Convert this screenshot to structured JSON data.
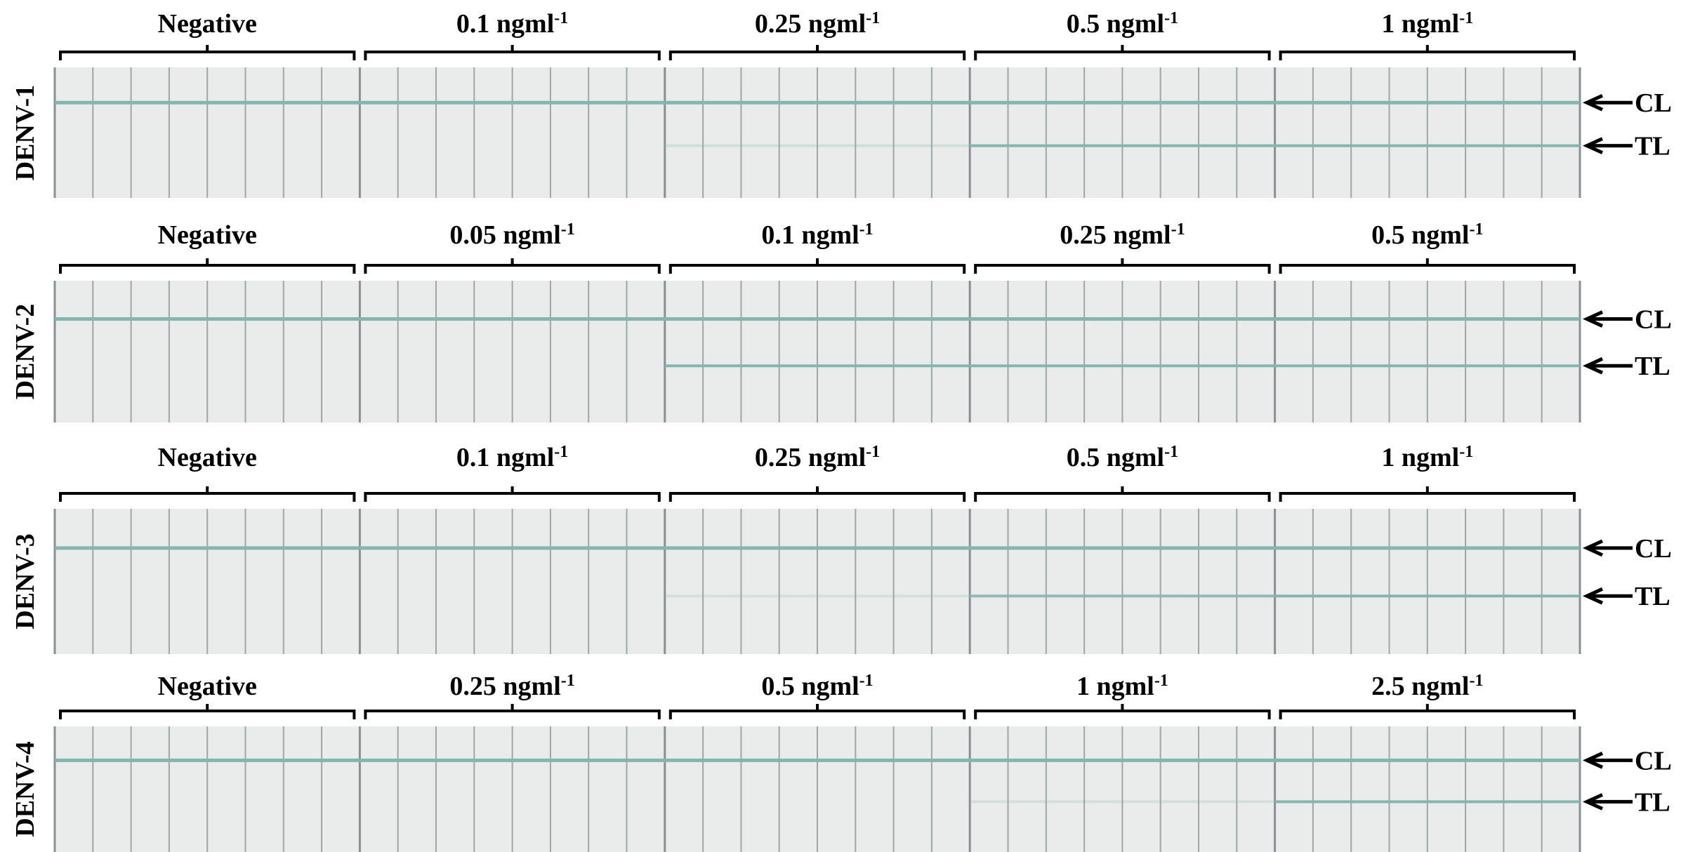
{
  "panels": [
    {
      "label": "DENV-1",
      "cl": "CL",
      "tl": "TL",
      "groups": [
        {
          "label": "Negative"
        },
        {
          "label": "0.1 ngml",
          "sup": "-1"
        },
        {
          "label": "0.25 ngml",
          "sup": "-1"
        },
        {
          "label": "0.5 ngml",
          "sup": "-1"
        },
        {
          "label": "1 ngml",
          "sup": "-1"
        }
      ]
    },
    {
      "label": "DENV-2",
      "cl": "CL",
      "tl": "TL",
      "groups": [
        {
          "label": "Negative"
        },
        {
          "label": "0.05 ngml",
          "sup": "-1"
        },
        {
          "label": "0.1 ngml",
          "sup": "-1"
        },
        {
          "label": "0.25 ngml",
          "sup": "-1"
        },
        {
          "label": "0.5 ngml",
          "sup": "-1"
        }
      ]
    },
    {
      "label": "DENV-3",
      "cl": "CL",
      "tl": "TL",
      "groups": [
        {
          "label": "Negative"
        },
        {
          "label": "0.1 ngml",
          "sup": "-1"
        },
        {
          "label": "0.25 ngml",
          "sup": "-1"
        },
        {
          "label": "0.5 ngml",
          "sup": "-1"
        },
        {
          "label": "1 ngml",
          "sup": "-1"
        }
      ]
    },
    {
      "label": "DENV-4",
      "cl": "CL",
      "tl": "TL",
      "groups": [
        {
          "label": "Negative"
        },
        {
          "label": "0.25 ngml",
          "sup": "-1"
        },
        {
          "label": "0.5 ngml",
          "sup": "-1"
        },
        {
          "label": "1 ngml",
          "sup": "-1"
        },
        {
          "label": "2.5 ngml",
          "sup": "-1"
        }
      ]
    }
  ]
}
